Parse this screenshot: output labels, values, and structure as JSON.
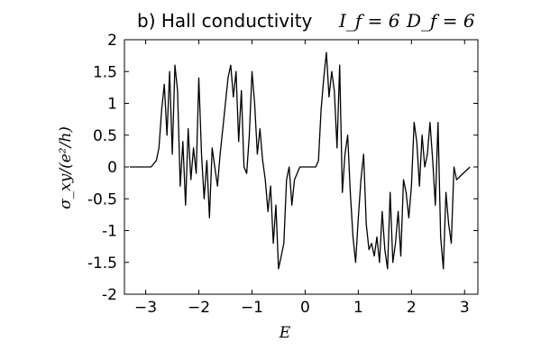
{
  "chart_data": {
    "type": "line",
    "title": "b) Hall conductivity",
    "title_params": [
      "I_f = 6",
      "D_f = 6"
    ],
    "xlabel": "E",
    "ylabel": "σ_xy/(e²/h)",
    "xlim": [
      -3.4,
      3.25
    ],
    "ylim": [
      -2,
      2
    ],
    "xticks": [
      -3,
      -2,
      -1,
      0,
      1,
      2,
      3
    ],
    "xtick_labels": [
      "−3",
      "−2",
      "−1",
      "0",
      "1",
      "2",
      "3"
    ],
    "yticks": [
      2,
      1.5,
      1,
      0.5,
      0,
      -0.5,
      -1,
      -1.5,
      -2
    ],
    "ytick_labels": [
      "2",
      "1.5",
      "1",
      "0.5",
      "0",
      "-0.5",
      "-1",
      "-1.5",
      "-2"
    ],
    "grid": false,
    "series": [
      {
        "x": [
          -3.3,
          -2.9,
          -2.8,
          -2.75,
          -2.7,
          -2.65,
          -2.6,
          -2.55,
          -2.5,
          -2.45,
          -2.4,
          -2.35,
          -2.3,
          -2.25,
          -2.2,
          -2.15,
          -2.1,
          -2.05,
          -2.0,
          -1.95,
          -1.9,
          -1.85,
          -1.8,
          -1.75,
          -1.7,
          -1.65,
          -1.6,
          -1.55,
          -1.5,
          -1.45,
          -1.4,
          -1.35,
          -1.3,
          -1.25,
          -1.2,
          -1.15,
          -1.1,
          -1.05,
          -1.0,
          -0.95,
          -0.9,
          -0.85,
          -0.8,
          -0.75,
          -0.7,
          -0.65,
          -0.6,
          -0.55,
          -0.5,
          -0.45,
          -0.4,
          -0.35,
          -0.3,
          -0.25,
          -0.2,
          -0.15,
          -0.1,
          0.0,
          0.1,
          0.2,
          0.25,
          0.3,
          0.35,
          0.4,
          0.45,
          0.5,
          0.55,
          0.6,
          0.65,
          0.7,
          0.75,
          0.8,
          0.85,
          0.9,
          0.95,
          1.0,
          1.05,
          1.1,
          1.15,
          1.2,
          1.25,
          1.3,
          1.35,
          1.4,
          1.45,
          1.5,
          1.55,
          1.6,
          1.65,
          1.7,
          1.75,
          1.8,
          1.85,
          1.9,
          1.95,
          2.0,
          2.05,
          2.1,
          2.15,
          2.2,
          2.25,
          2.3,
          2.35,
          2.4,
          2.45,
          2.5,
          2.55,
          2.6,
          2.65,
          2.7,
          2.75,
          2.8,
          2.85,
          3.1
        ],
        "y": [
          0,
          0,
          0.1,
          0.3,
          0.9,
          1.3,
          0.5,
          1.5,
          0.2,
          1.6,
          1.2,
          -0.3,
          0.4,
          -0.6,
          0.6,
          -0.2,
          0.3,
          -0.1,
          1.4,
          0.2,
          -0.5,
          0.1,
          -0.8,
          0.3,
          0.0,
          -0.3,
          0.2,
          0.6,
          1.0,
          1.4,
          1.6,
          1.1,
          1.5,
          0.4,
          1.2,
          0.0,
          -0.1,
          0.5,
          1.5,
          1.0,
          0.2,
          0.6,
          0.1,
          -0.2,
          -0.7,
          -0.3,
          -1.2,
          -0.6,
          -1.6,
          -1.4,
          -1.2,
          -0.2,
          0.0,
          -0.6,
          -0.2,
          -0.1,
          0.0,
          0.0,
          0.0,
          0.0,
          0.1,
          0.9,
          1.4,
          1.8,
          1.1,
          1.5,
          1.2,
          0.3,
          1.6,
          -0.4,
          0.2,
          0.5,
          -0.4,
          -1.1,
          -1.5,
          -0.8,
          -0.2,
          0.2,
          -0.9,
          -1.3,
          -1.2,
          -1.4,
          -1.1,
          -1.5,
          -0.7,
          -1.3,
          -1.6,
          -0.4,
          -1.5,
          -1.2,
          -0.7,
          -1.4,
          -0.2,
          -0.4,
          -0.8,
          -0.3,
          0.7,
          0.4,
          -0.3,
          0.5,
          0.0,
          0.2,
          0.7,
          0.1,
          -0.6,
          0.7,
          -1.1,
          -1.6,
          -0.4,
          -0.9,
          -1.2,
          0.0,
          -0.2,
          0.0
        ]
      }
    ]
  }
}
